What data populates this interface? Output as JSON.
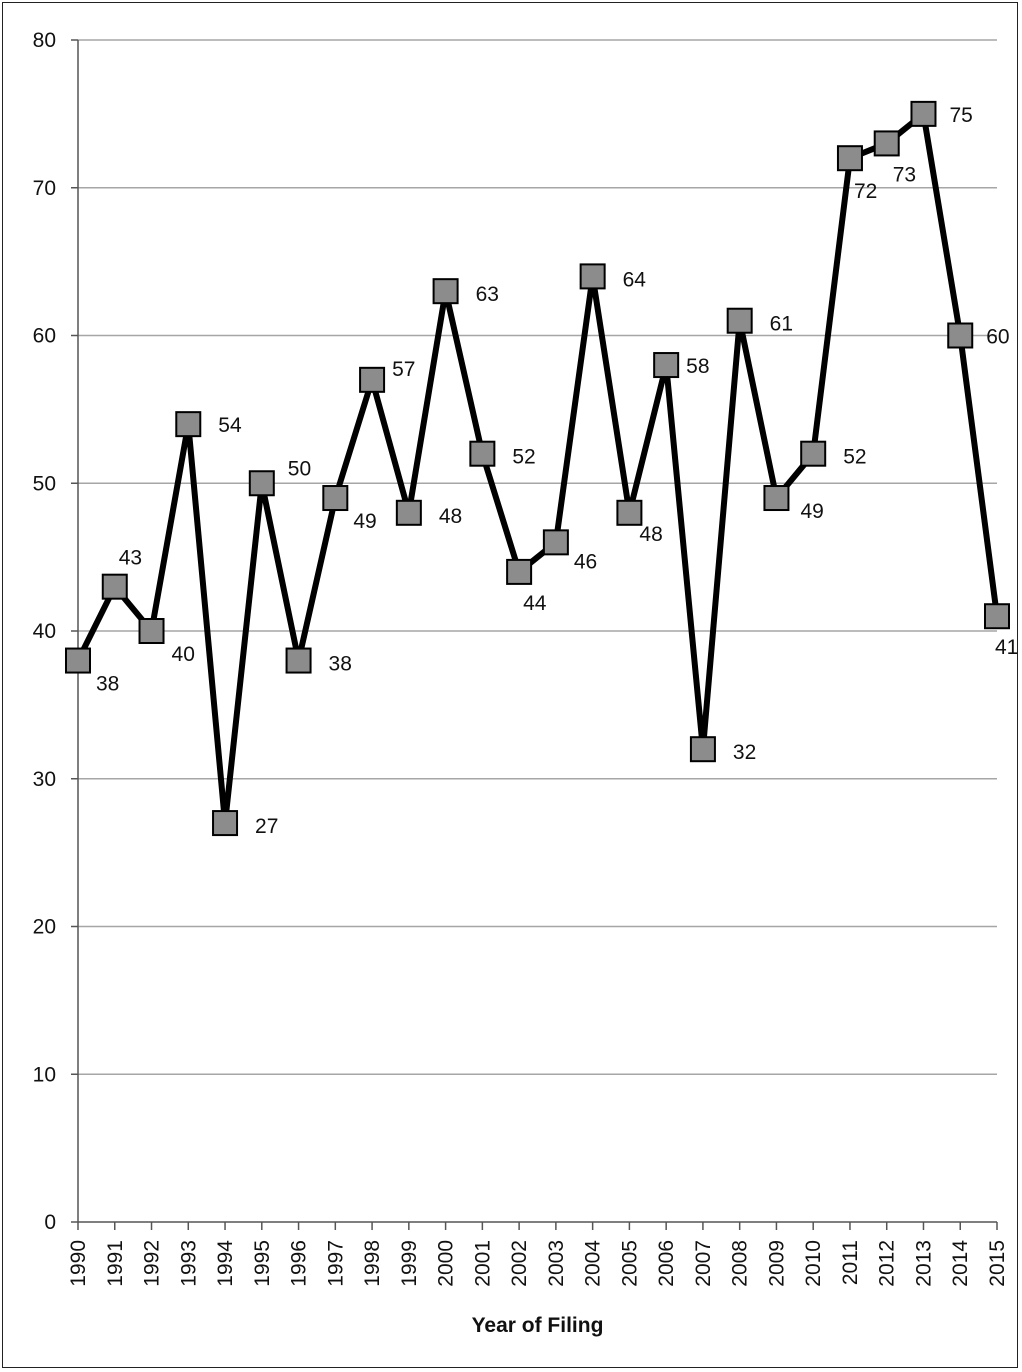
{
  "chart_data": {
    "type": "line",
    "title": "",
    "xlabel": "Year of Filing",
    "ylabel": "",
    "ylim": [
      0,
      80
    ],
    "yticks": [
      0,
      10,
      20,
      30,
      40,
      50,
      60,
      70,
      80
    ],
    "grid": true,
    "legend": "none",
    "marker": "square",
    "colors": {
      "line": "#000000",
      "marker_fill": "#8c8c8c",
      "marker_stroke": "#000000",
      "grid": "#a6a6a6"
    },
    "x": [
      "1990",
      "1991",
      "1992",
      "1993",
      "1994",
      "1995",
      "1996",
      "1997",
      "1998",
      "1999",
      "2000",
      "2001",
      "2002",
      "2003",
      "2004",
      "2005",
      "2006",
      "2007",
      "2008",
      "2009",
      "2010",
      "2011",
      "2012",
      "2013",
      "2014",
      "2015"
    ],
    "values": [
      38,
      43,
      40,
      54,
      27,
      50,
      38,
      49,
      57,
      48,
      63,
      52,
      44,
      46,
      64,
      48,
      58,
      32,
      61,
      49,
      52,
      72,
      73,
      75,
      60,
      41
    ]
  }
}
